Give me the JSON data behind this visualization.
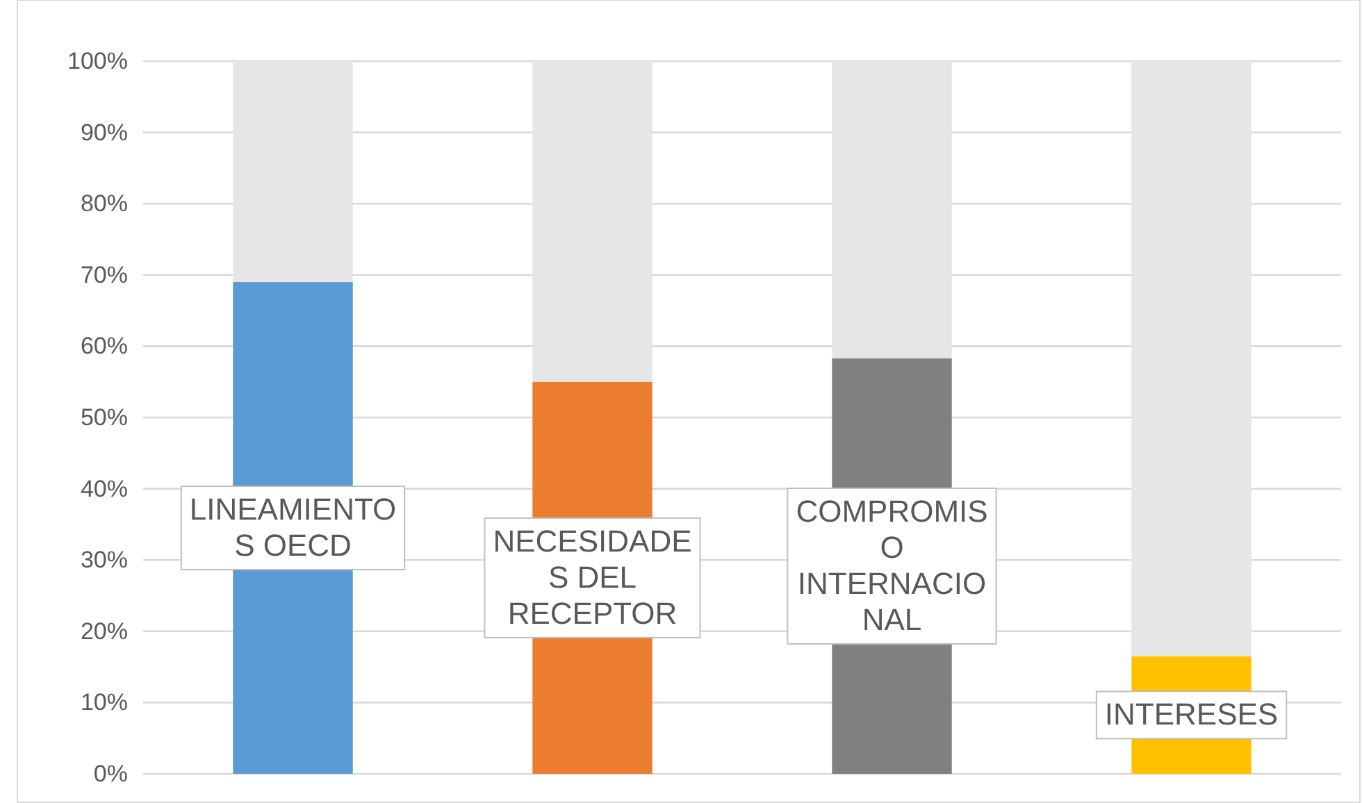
{
  "chart_data": {
    "type": "bar",
    "stacked": true,
    "categories": [
      "LINEAMIENTOS OECD",
      "NECESIDADES DEL RECEPTOR",
      "COMPROMISO INTERNACIONAL",
      "INTERESES"
    ],
    "series": [
      {
        "colors": [
          "#5b9bd5",
          "#ed7d31",
          "#808080",
          "#ffc000"
        ],
        "values": [
          69,
          55,
          58.3,
          16.5
        ]
      },
      {
        "color": "#e6e6e6",
        "values": [
          31,
          45,
          41.7,
          83.5
        ]
      }
    ],
    "ylim": [
      0,
      100
    ],
    "yticks": [
      {
        "value": 0,
        "label": "0%"
      },
      {
        "value": 10,
        "label": "10%"
      },
      {
        "value": 20,
        "label": "20%"
      },
      {
        "value": 30,
        "label": "30%"
      },
      {
        "value": 40,
        "label": "40%"
      },
      {
        "value": 50,
        "label": "50%"
      },
      {
        "value": 60,
        "label": "60%"
      },
      {
        "value": 70,
        "label": "70%"
      },
      {
        "value": 80,
        "label": "80%"
      },
      {
        "value": 90,
        "label": "90%"
      },
      {
        "value": 100,
        "label": "100%"
      }
    ],
    "grid": "y"
  }
}
